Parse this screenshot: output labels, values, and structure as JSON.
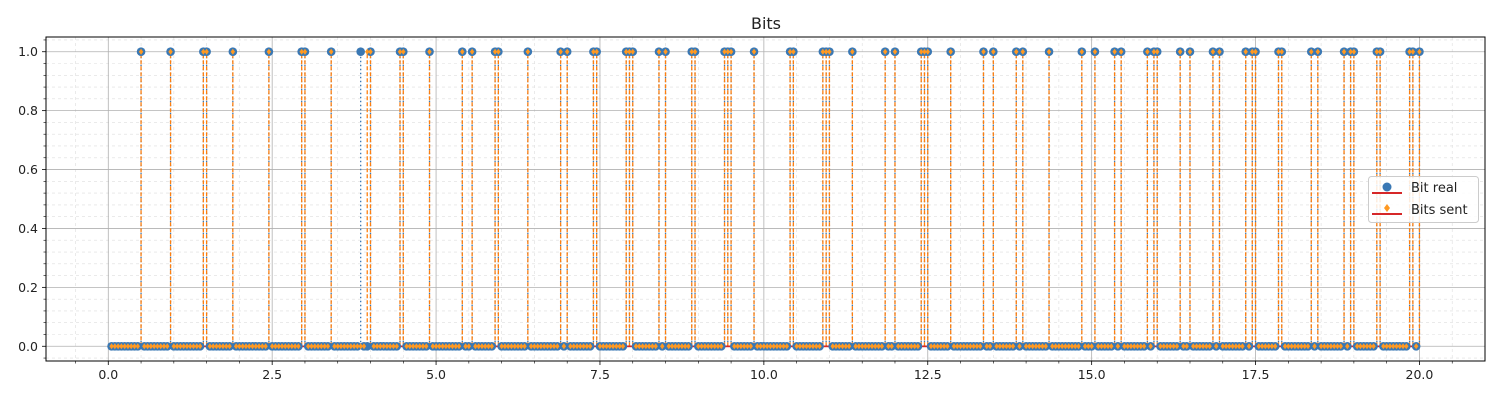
{
  "chart_data": {
    "type": "stem",
    "title": "Bits",
    "xlabel": "",
    "ylabel": "",
    "xlim": [
      -0.95,
      21.0
    ],
    "ylim": [
      -0.05,
      1.05
    ],
    "x_ticks": [
      0.0,
      2.5,
      5.0,
      7.5,
      10.0,
      12.5,
      15.0,
      17.5,
      20.0
    ],
    "x_tick_labels": [
      "0.0",
      "2.5",
      "5.0",
      "7.5",
      "10.0",
      "12.5",
      "15.0",
      "17.5",
      "20.0"
    ],
    "y_ticks": [
      0.0,
      0.2,
      0.4,
      0.6,
      0.8,
      1.0
    ],
    "y_tick_labels": [
      "0.0",
      "0.2",
      "0.4",
      "0.6",
      "0.8",
      "1.0"
    ],
    "grid": true,
    "minor_grid": true,
    "legend_position": "center-right",
    "sample_step": 0.05,
    "sample_start": 0.05,
    "sample_count": 400,
    "series": [
      {
        "name": "Bit real",
        "marker": "circle",
        "color": "#3a78b4",
        "stem_color": "#3a78b4",
        "stem_style": "dotted",
        "baseline_color": "#d62728",
        "one_positions": [
          0.5,
          0.95,
          1.45,
          1.5,
          1.9,
          2.45,
          2.95,
          3.0,
          3.4,
          3.85,
          4.0,
          4.45,
          4.5,
          4.9,
          5.4,
          5.55,
          5.9,
          5.95,
          6.4,
          6.9,
          7.0,
          7.4,
          7.45,
          7.9,
          7.95,
          8.0,
          8.4,
          8.5,
          8.9,
          8.95,
          9.4,
          9.45,
          9.5,
          9.85,
          10.4,
          10.45,
          10.9,
          10.95,
          11.0,
          11.35,
          11.85,
          12.0,
          12.4,
          12.45,
          12.5,
          12.85,
          13.35,
          13.5,
          13.85,
          13.95,
          14.35,
          14.85,
          15.05,
          15.35,
          15.45,
          15.85,
          15.95,
          16.0,
          16.35,
          16.5,
          16.85,
          16.95,
          17.35,
          17.45,
          17.5,
          17.85,
          17.9,
          18.35,
          18.45,
          18.85,
          18.95,
          19.0,
          19.35,
          19.4,
          19.85,
          19.9,
          20.0
        ]
      },
      {
        "name": "Bits sent",
        "marker": "diamond",
        "color": "#ff9922",
        "stem_color": "#ff7f0e",
        "stem_style": "dashed",
        "baseline_color": "#d62728",
        "one_positions": [
          0.5,
          0.95,
          1.45,
          1.5,
          1.9,
          2.45,
          2.95,
          3.0,
          3.4,
          3.95,
          4.0,
          4.45,
          4.5,
          4.9,
          5.4,
          5.55,
          5.9,
          5.95,
          6.4,
          6.9,
          7.0,
          7.4,
          7.45,
          7.9,
          7.95,
          8.0,
          8.4,
          8.5,
          8.9,
          8.95,
          9.4,
          9.45,
          9.5,
          9.85,
          10.4,
          10.45,
          10.9,
          10.95,
          11.0,
          11.35,
          11.85,
          12.0,
          12.4,
          12.45,
          12.5,
          12.85,
          13.35,
          13.5,
          13.85,
          13.95,
          14.35,
          14.85,
          15.05,
          15.35,
          15.45,
          15.85,
          15.95,
          16.0,
          16.35,
          16.5,
          16.85,
          16.95,
          17.35,
          17.45,
          17.5,
          17.85,
          17.9,
          18.35,
          18.45,
          18.85,
          18.95,
          19.0,
          19.35,
          19.4,
          19.85,
          19.9,
          20.0
        ]
      }
    ]
  }
}
